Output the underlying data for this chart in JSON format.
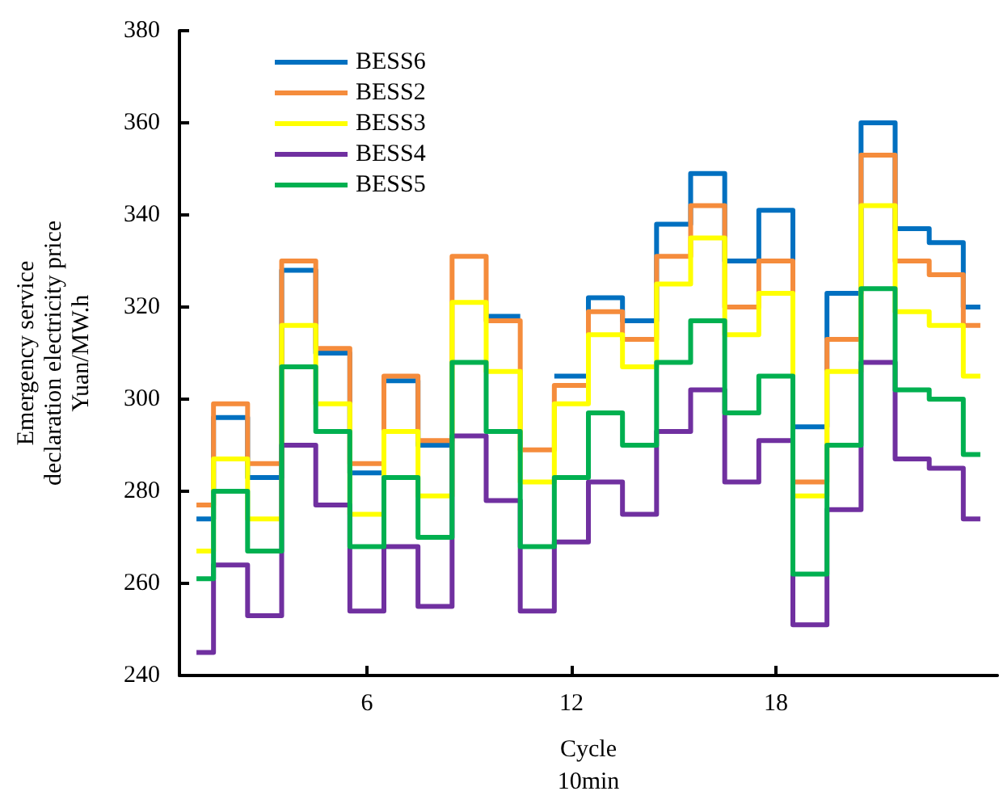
{
  "chart_data": {
    "type": "step",
    "xlabel": "Cycle\n10min",
    "ylabel": "Emergency service\ndeclaration electricity price\nYuan/MW.h",
    "x": [
      1,
      2,
      3,
      4,
      5,
      6,
      7,
      8,
      9,
      10,
      11,
      12,
      13,
      14,
      15,
      16,
      17,
      18,
      19,
      20,
      21,
      22,
      23,
      24
    ],
    "xlim": [
      0.5,
      24.5
    ],
    "xticks": [
      6,
      12,
      18
    ],
    "ylim": [
      240,
      380
    ],
    "yticks": [
      240,
      260,
      280,
      300,
      320,
      340,
      360,
      380
    ],
    "grid": false,
    "legend": "top left",
    "series": [
      {
        "name": "BESS6",
        "color": "#0070c0",
        "values": [
          274,
          296,
          283,
          328,
          310,
          284,
          304,
          290,
          null,
          318,
          null,
          305,
          322,
          317,
          338,
          349,
          330,
          341,
          294,
          323,
          360,
          337,
          334,
          320
        ]
      },
      {
        "name": "BESS2",
        "color": "#f58c3c",
        "values": [
          277,
          299,
          286,
          330,
          311,
          286,
          305,
          291,
          331,
          317,
          289,
          303,
          319,
          313,
          331,
          342,
          320,
          330,
          282,
          313,
          353,
          330,
          327,
          316
        ]
      },
      {
        "name": "BESS3",
        "color": "#ffff00",
        "values": [
          267,
          287,
          274,
          316,
          299,
          275,
          293,
          279,
          321,
          306,
          282,
          299,
          314,
          307,
          325,
          335,
          314,
          323,
          279,
          306,
          342,
          319,
          316,
          305
        ]
      },
      {
        "name": "BESS4",
        "color": "#7030a0",
        "values": [
          245,
          264,
          253,
          290,
          277,
          254,
          268,
          255,
          292,
          278,
          254,
          269,
          282,
          275,
          293,
          302,
          282,
          291,
          251,
          276,
          308,
          287,
          285,
          274
        ]
      },
      {
        "name": "BESS5",
        "color": "#00b050",
        "values": [
          261,
          280,
          267,
          307,
          293,
          268,
          283,
          270,
          308,
          293,
          268,
          283,
          297,
          290,
          308,
          317,
          297,
          305,
          262,
          290,
          324,
          302,
          300,
          288
        ]
      }
    ]
  }
}
